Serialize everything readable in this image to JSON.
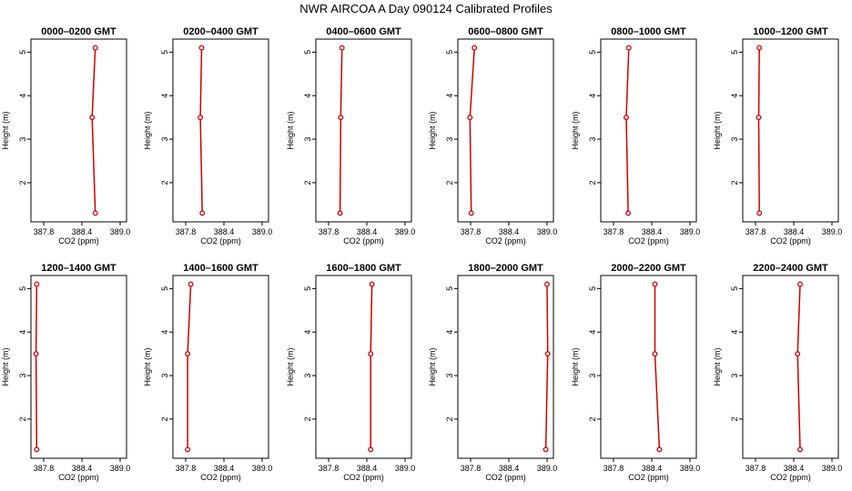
{
  "title": "NWR AIRCOA A  Day 090124  Calibrated Profiles",
  "colors": {
    "line": "#cc0000",
    "axis": "#000000"
  },
  "chart_data": {
    "type": "line",
    "xlabel": "CO2 (ppm)",
    "ylabel": "Height (m)",
    "xlim": [
      387.6,
      389.1
    ],
    "ylim": [
      1.1,
      5.3
    ],
    "x_ticks": [
      387.8,
      388.4,
      389.0
    ],
    "x_tick_labels": [
      "387.8",
      "388.4",
      "389.0"
    ],
    "y_ticks": [
      2,
      3,
      4,
      5
    ],
    "y_tick_labels": [
      "2",
      "3",
      "4",
      "5"
    ],
    "heights": [
      1.3,
      3.5,
      5.1
    ],
    "panels": [
      {
        "title": "0000–0200 GMT",
        "values": [
          388.61,
          388.56,
          388.61
        ]
      },
      {
        "title": "0200–0400 GMT",
        "values": [
          388.06,
          388.03,
          388.05
        ]
      },
      {
        "title": "0400–0600 GMT",
        "values": [
          387.98,
          387.99,
          388.01
        ]
      },
      {
        "title": "0600–0800 GMT",
        "values": [
          387.81,
          387.79,
          387.86
        ]
      },
      {
        "title": "0800–1000 GMT",
        "values": [
          388.03,
          388.0,
          388.04
        ]
      },
      {
        "title": "1000–1200 GMT",
        "values": [
          387.86,
          387.85,
          387.86
        ]
      },
      {
        "title": "1200–1400 GMT",
        "values": [
          387.69,
          387.68,
          387.69
        ]
      },
      {
        "title": "1400–1600 GMT",
        "values": [
          387.83,
          387.83,
          387.88
        ]
      },
      {
        "title": "1600–1800 GMT",
        "values": [
          388.46,
          388.46,
          388.48
        ]
      },
      {
        "title": "1800–2000 GMT",
        "values": [
          388.98,
          389.01,
          389.0
        ]
      },
      {
        "title": "2000–2200 GMT",
        "values": [
          388.52,
          388.45,
          388.45
        ]
      },
      {
        "title": "2200–2400 GMT",
        "values": [
          388.5,
          388.46,
          388.5
        ]
      }
    ]
  }
}
